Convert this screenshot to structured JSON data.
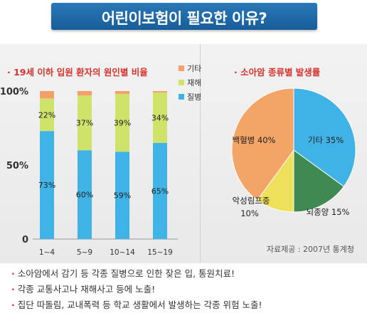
{
  "banner": {
    "title": "어린이보험이 필요한 이유?"
  },
  "chart_data": [
    {
      "type": "bar",
      "title": "· 19세 이하 입원 환자의 원인별 비율",
      "categories": [
        "1~4",
        "5~9",
        "10~14",
        "15~19"
      ],
      "yticks": [
        "0",
        "50%",
        "100%"
      ],
      "ylim": [
        0,
        100
      ],
      "stacked": true,
      "legend_position": "top-right",
      "series": [
        {
          "name": "질병",
          "color": "#3fb3e6",
          "values": [
            73,
            60,
            59,
            65
          ]
        },
        {
          "name": "재해",
          "color": "#cfe26a",
          "values": [
            22,
            37,
            39,
            34
          ]
        },
        {
          "name": "기타",
          "color": "#f4a06a",
          "values": [
            5,
            3,
            2,
            1
          ]
        }
      ],
      "shown_labels": {
        "질병": [
          "73%",
          "60%",
          "59%",
          "65%"
        ],
        "재해": [
          "22%",
          "37%",
          "39%",
          "34%"
        ]
      }
    },
    {
      "type": "pie",
      "title": "· 소아암 종류별 발생률",
      "slices": [
        {
          "label": "기타",
          "value": 35,
          "display": "기타 35%",
          "color": "#3fb3e6"
        },
        {
          "label": "뇌종양",
          "value": 15,
          "display": "뇌종양 15%",
          "color": "#3f8a52"
        },
        {
          "label": "악성림프종",
          "value": 10,
          "display": "10%",
          "name_display": "악성림프종",
          "color": "#eee05a"
        },
        {
          "label": "백혈병",
          "value": 40,
          "display": "백혈병 40%",
          "color": "#f2a566"
        }
      ]
    }
  ],
  "source": "자료제공 : 2007년 통계청",
  "notes": [
    "소아암에서 감기 등 각종 질병으로 인한 잦은 입, 통원치료!",
    "각종 교통사고나 재해사고 등에 노출!",
    "집단 따돌림, 교내폭력 등 학교 생활에서 발생하는 각종 위험 노출!"
  ]
}
